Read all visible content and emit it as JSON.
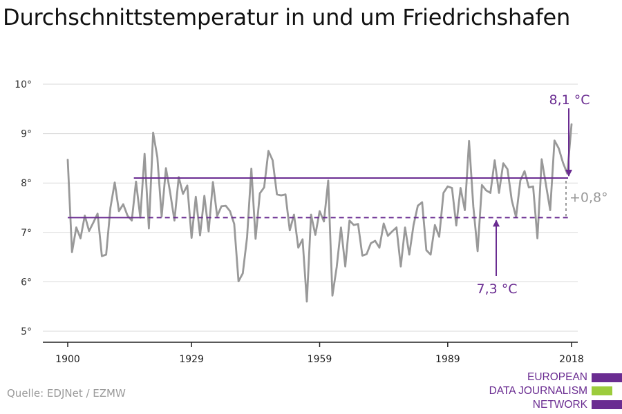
{
  "title": "Durchschnittstemperatur in und um Friedrichshafen",
  "source": "Quelle: EDJNet / EZMW",
  "logo": {
    "lines": [
      "EUROPEAN",
      "DATA JOURNALISM",
      "NETWORK"
    ],
    "colors": [
      "#6a2c91",
      "#9ccc3c",
      "#6a2c91"
    ]
  },
  "colors": {
    "series": "#999999",
    "accent": "#6a2c91",
    "delta": "#9a9a9a",
    "grid": "#d9d9d9",
    "axis": "#222222"
  },
  "chart_data": {
    "type": "line",
    "ylim": [
      5,
      10
    ],
    "xlim": [
      1900,
      2018
    ],
    "yticks": [
      5,
      6,
      7,
      8,
      9,
      10
    ],
    "ytick_labels": [
      "5°",
      "6°",
      "7°",
      "8°",
      "9°",
      "10°"
    ],
    "xticks": [
      1900,
      1929,
      1959,
      1989,
      2018
    ],
    "xtick_labels": [
      "1900",
      "1929",
      "1959",
      "1989",
      "2018"
    ],
    "grid": true,
    "legend": "none",
    "series": [
      {
        "x": [
          1900,
          1901,
          1902,
          1903,
          1904,
          1905,
          1906,
          1907,
          1908,
          1909,
          1910,
          1911,
          1912,
          1913,
          1914,
          1915,
          1916,
          1917,
          1918,
          1919,
          1920,
          1921,
          1922,
          1923,
          1924,
          1925,
          1926,
          1927,
          1928,
          1929,
          1930,
          1931,
          1932,
          1933,
          1934,
          1935,
          1936,
          1937,
          1938,
          1939,
          1940,
          1941,
          1942,
          1943,
          1944,
          1945,
          1946,
          1947,
          1948,
          1949,
          1950,
          1951,
          1952,
          1953,
          1954,
          1955,
          1956,
          1957,
          1958,
          1959,
          1960,
          1961,
          1962,
          1963,
          1964,
          1965,
          1966,
          1967,
          1968,
          1969,
          1970,
          1971,
          1972,
          1973,
          1974,
          1975,
          1976,
          1977,
          1978,
          1979,
          1980,
          1981,
          1982,
          1983,
          1984,
          1985,
          1986,
          1987,
          1988,
          1989,
          1990,
          1991,
          1992,
          1993,
          1994,
          1995,
          1996,
          1997,
          1998,
          1999,
          2000,
          2001,
          2002,
          2003,
          2004,
          2005,
          2006,
          2007,
          2008,
          2009,
          2010,
          2011,
          2012,
          2013,
          2014,
          2015,
          2016,
          2017,
          2018
        ],
        "values": [
          8.47,
          6.6,
          7.1,
          6.88,
          7.34,
          7.03,
          7.2,
          7.38,
          6.52,
          6.55,
          7.5,
          8.01,
          7.43,
          7.57,
          7.34,
          7.24,
          8.03,
          7.3,
          8.59,
          7.08,
          9.02,
          8.52,
          7.32,
          8.3,
          7.8,
          7.24,
          8.12,
          7.78,
          7.95,
          6.89,
          7.72,
          6.94,
          7.74,
          7.02,
          8.02,
          7.33,
          7.53,
          7.54,
          7.43,
          7.17,
          6.01,
          6.17,
          6.9,
          8.29,
          6.87,
          7.79,
          7.91,
          8.65,
          8.46,
          7.77,
          7.75,
          7.77,
          7.04,
          7.36,
          6.69,
          6.86,
          5.6,
          7.36,
          6.95,
          7.43,
          7.22,
          8.05,
          5.72,
          6.3,
          7.1,
          6.31,
          7.24,
          7.15,
          7.17,
          6.53,
          6.56,
          6.78,
          6.83,
          6.69,
          7.18,
          6.93,
          7.02,
          7.1,
          6.31,
          7.1,
          6.55,
          7.15,
          7.54,
          7.61,
          6.64,
          6.55,
          7.15,
          6.91,
          7.8,
          7.93,
          7.9,
          7.14,
          7.9,
          7.45,
          8.85,
          7.52,
          6.62,
          7.96,
          7.85,
          7.8,
          8.46,
          7.8,
          8.4,
          8.28,
          7.65,
          7.31,
          8.05,
          8.24,
          7.91,
          7.93,
          6.88,
          8.48,
          7.97,
          7.45,
          8.86,
          8.7,
          8.41,
          8.19,
          9.19
        ]
      }
    ],
    "annotations": [
      {
        "label": "8,1 °C",
        "value": 8.1,
        "from_year": 1915
      },
      {
        "label": "7,3 °C",
        "value": 7.3,
        "from_year": 1900
      },
      {
        "label": "+0,8°",
        "value": 0.8
      }
    ]
  }
}
